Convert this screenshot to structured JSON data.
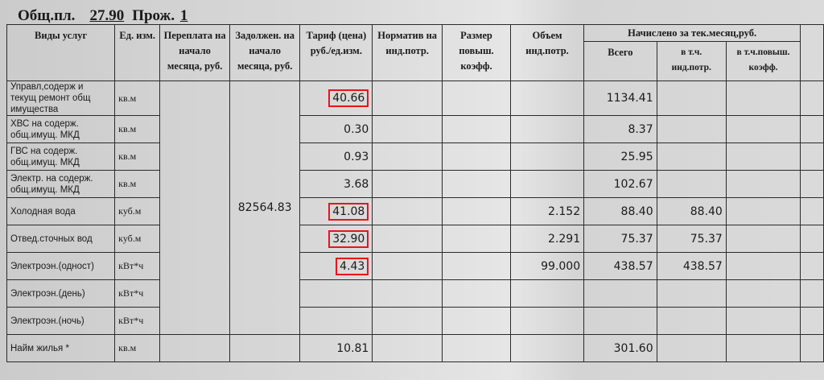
{
  "header": {
    "area_label": "Общ.пл.",
    "area_value": "27.90",
    "residents_label": "Прож.",
    "residents_value": "1"
  },
  "columns": {
    "service": "Виды услуг",
    "unit": "Ед. изм.",
    "overpay": "Переплата на начало месяца, руб.",
    "debt": "Задолжен. на начало месяца, руб.",
    "tariff": "Тариф (цена) руб./ед.изм.",
    "norm": "Норматив на инд.потр.",
    "coef": "Размер повыш. коэфф.",
    "volume": "Объем инд.потр.",
    "charged": "Начислено за тек.месяц,руб.",
    "total": "Всего",
    "ind": "в т.ч. инд.потр.",
    "incr": "в т.ч.повыш. коэфф."
  },
  "debt_value": "82564.83",
  "highlight_color": "#e8141c",
  "rows": [
    {
      "service": "Управл,содерж и текущ ремонт общ имущества",
      "unit": "кв.м",
      "tariff": "40.66",
      "hl": true,
      "volume": "",
      "total": "1134.41",
      "ind": ""
    },
    {
      "service": "ХВС на содерж. общ.имущ. МКД",
      "unit": "кв.м",
      "tariff": "0.30",
      "hl": false,
      "volume": "",
      "total": "8.37",
      "ind": ""
    },
    {
      "service": "ГВС на содерж. общ.имущ. МКД",
      "unit": "кв.м",
      "tariff": "0.93",
      "hl": false,
      "volume": "",
      "total": "25.95",
      "ind": ""
    },
    {
      "service": "Электр. на содерж. общ.имущ. МКД",
      "unit": "кв.м",
      "tariff": "3.68",
      "hl": false,
      "volume": "",
      "total": "102.67",
      "ind": ""
    },
    {
      "service": "Холодная вода",
      "unit": "куб.м",
      "tariff": "41.08",
      "hl": true,
      "volume": "2.152",
      "total": "88.40",
      "ind": "88.40"
    },
    {
      "service": "Отвед.сточных вод",
      "unit": "куб.м",
      "tariff": "32.90",
      "hl": true,
      "volume": "2.291",
      "total": "75.37",
      "ind": "75.37"
    },
    {
      "service": "Электроэн.(одност)",
      "unit": "кВт*ч",
      "tariff": "4.43",
      "hl": true,
      "volume": "99.000",
      "total": "438.57",
      "ind": "438.57"
    },
    {
      "service": "Электроэн.(день)",
      "unit": "кВт*ч",
      "tariff": "",
      "hl": false,
      "volume": "",
      "total": "",
      "ind": ""
    },
    {
      "service": "Электроэн.(ночь)",
      "unit": "кВт*ч",
      "tariff": "",
      "hl": false,
      "volume": "",
      "total": "",
      "ind": ""
    },
    {
      "service": "Найм жилья *",
      "unit": "кв.м",
      "tariff": "10.81",
      "hl": false,
      "volume": "",
      "total": "301.60",
      "ind": ""
    }
  ]
}
